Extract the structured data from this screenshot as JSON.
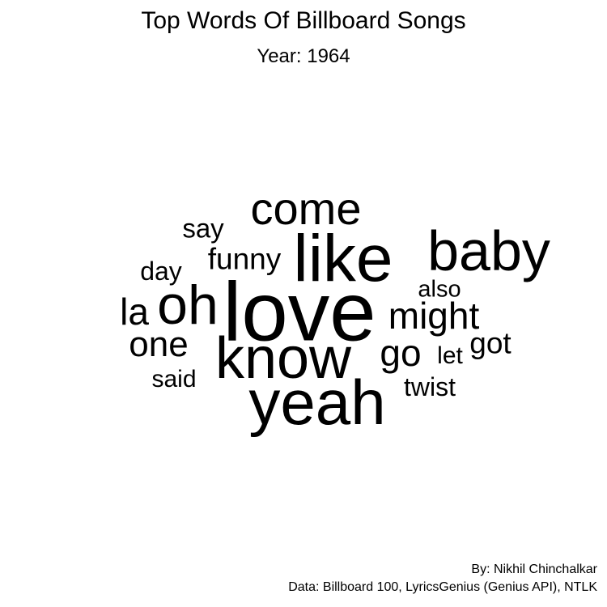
{
  "chart_data": {
    "type": "wordcloud",
    "title": "Top Words Of Billboard Songs",
    "subtitle": "Year: 1964",
    "words": [
      {
        "text": "love",
        "weight": 100
      },
      {
        "text": "yeah",
        "weight": 82
      },
      {
        "text": "know",
        "weight": 78
      },
      {
        "text": "like",
        "weight": 76
      },
      {
        "text": "baby",
        "weight": 74
      },
      {
        "text": "oh",
        "weight": 68
      },
      {
        "text": "come",
        "weight": 60
      },
      {
        "text": "might",
        "weight": 52
      },
      {
        "text": "go",
        "weight": 47
      },
      {
        "text": "la",
        "weight": 47
      },
      {
        "text": "one",
        "weight": 47
      },
      {
        "text": "funny",
        "weight": 38
      },
      {
        "text": "got",
        "weight": 38
      },
      {
        "text": "twist",
        "weight": 35
      },
      {
        "text": "say",
        "weight": 35
      },
      {
        "text": "day",
        "weight": 35
      },
      {
        "text": "said",
        "weight": 33
      },
      {
        "text": "let",
        "weight": 30
      },
      {
        "text": "also",
        "weight": 30
      }
    ],
    "caption_author": "By: Nikhil Chinchalkar",
    "caption_source": "Data: Billboard 100, LyricsGenius (Genius API), NTLK"
  }
}
